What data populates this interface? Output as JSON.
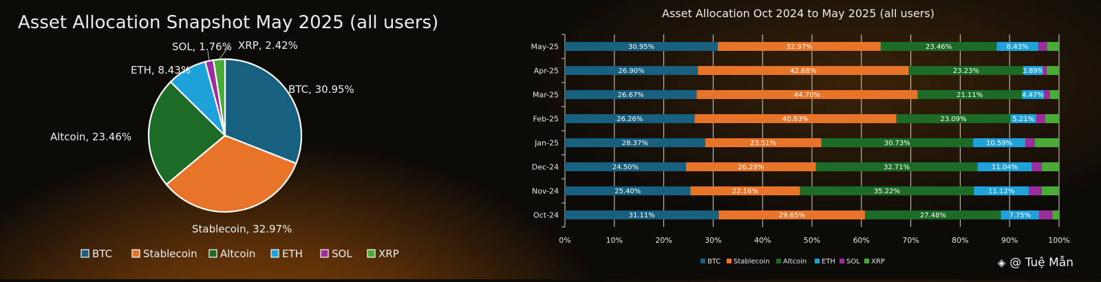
{
  "chart_data": [
    {
      "type": "pie",
      "title": "Asset Allocation Snapshot May 2025",
      "subtitle": "(all users)",
      "categories": [
        "BTC",
        "Stablecoin",
        "Altcoin",
        "ETH",
        "SOL",
        "XRP"
      ],
      "values": [
        30.95,
        32.97,
        23.46,
        8.43,
        1.76,
        2.42
      ],
      "labels": [
        "BTC, 30.95%",
        "Stablecoin, 32.97%",
        "Altcoin, 23.46%",
        "ETH, 8.43%",
        "SOL, 1.76%",
        "XRP, 2.42%"
      ],
      "legend_position": "bottom"
    },
    {
      "type": "bar",
      "orientation": "horizontal-stacked-100",
      "title": "Asset Allocation Oct 2024 to May 2025 (all users)",
      "categories": [
        "May-25",
        "Apr-25",
        "Mar-25",
        "Feb-25",
        "Jan-25",
        "Dec-24",
        "Nov-24",
        "Oct-24"
      ],
      "xlim": [
        0,
        100
      ],
      "xticks": [
        "0%",
        "10%",
        "20%",
        "30%",
        "40%",
        "50%",
        "60%",
        "70%",
        "80%",
        "90%",
        "100%"
      ],
      "grid": true,
      "legend_position": "bottom",
      "series": [
        {
          "name": "BTC",
          "values": [
            30.95,
            26.9,
            26.67,
            26.26,
            28.37,
            24.5,
            25.4,
            31.11
          ]
        },
        {
          "name": "Stablecoin",
          "values": [
            32.97,
            42.68,
            44.7,
            40.83,
            23.51,
            26.29,
            22.16,
            29.65
          ]
        },
        {
          "name": "Altcoin",
          "values": [
            23.46,
            23.23,
            21.11,
            23.09,
            30.73,
            32.71,
            35.22,
            27.48
          ]
        },
        {
          "name": "ETH",
          "values": [
            8.43,
            3.89,
            4.47,
            5.21,
            10.59,
            11.04,
            11.12,
            7.75
          ]
        },
        {
          "name": "SOL",
          "values": [
            1.76,
            0.8,
            1.2,
            1.8,
            1.9,
            2.0,
            2.6,
            2.7
          ]
        },
        {
          "name": "XRP",
          "values": [
            2.42,
            2.5,
            1.85,
            2.81,
            4.9,
            3.46,
            3.5,
            1.31
          ]
        }
      ],
      "labeled_series": [
        "BTC",
        "Stablecoin",
        "Altcoin",
        "ETH"
      ],
      "value_labels": {
        "BTC": [
          "30.95%",
          "26.90%",
          "26.67%",
          "26.26%",
          "28.37%",
          "24.50%",
          "25.40%",
          "31.11%"
        ],
        "Stablecoin": [
          "32.97%",
          "42.68%",
          "44.70%",
          "40.83%",
          "23.51%",
          "26.29%",
          "22.16%",
          "29.65%"
        ],
        "Altcoin": [
          "23.46%",
          "23.23%",
          "21.11%",
          "23.09%",
          "30.73%",
          "32.71%",
          "35.22%",
          "27.48%"
        ],
        "ETH": [
          "8.43%",
          "3.89%",
          "4.47%",
          "5.21%",
          "10.59%",
          "11.04%",
          "11.12%",
          "7.75%"
        ]
      }
    }
  ],
  "colors": {
    "BTC": "#17607f",
    "Stablecoin": "#e8742a",
    "Altcoin": "#1c6b27",
    "ETH": "#1fa2da",
    "SOL": "#9c2d9e",
    "XRP": "#4aac36"
  },
  "watermark": {
    "icon": "binance-diamond-icon",
    "text": "@ Tuệ Mẫn"
  }
}
